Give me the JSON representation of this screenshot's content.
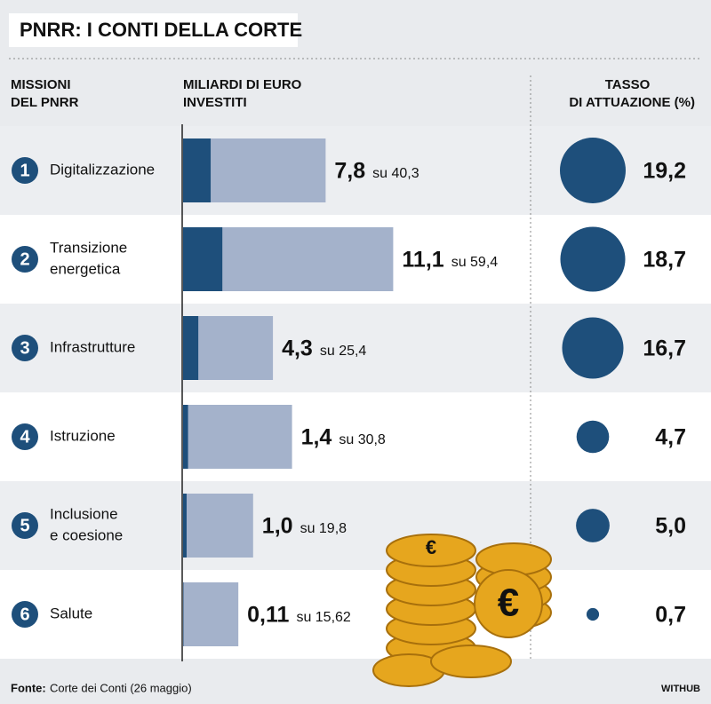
{
  "chart_data": {
    "type": "bar",
    "title": "PNRR: I CONTI DELLA CORTE",
    "headers": {
      "missions": [
        "MISSIONI",
        "DEL PNRR"
      ],
      "investments": [
        "MILIARDI DI EURO",
        "INVESTITI"
      ],
      "rate": [
        "TASSO",
        "DI ATTUAZIONE (%)"
      ]
    },
    "numbers": [
      "1",
      "2",
      "3",
      "4",
      "5",
      "6"
    ],
    "categories": [
      [
        "Digitalizzazione"
      ],
      [
        "Transizione",
        "energetica"
      ],
      [
        "Infrastrutture"
      ],
      [
        "Istruzione"
      ],
      [
        "Inclusione",
        "e coesione"
      ],
      [
        "Salute"
      ]
    ],
    "values": [
      7.8,
      11.1,
      4.3,
      1.4,
      1.0,
      0.11
    ],
    "value_labels": [
      "7,8",
      "11,1",
      "4,3",
      "1,4",
      "1,0",
      "0,11"
    ],
    "totals": [
      40.3,
      59.4,
      25.4,
      30.8,
      19.8,
      15.62
    ],
    "total_labels": [
      "su 40,3",
      "su 59,4",
      "su 25,4",
      "su 30,8",
      "su 19,8",
      "su 15,62"
    ],
    "rates": [
      19.2,
      18.7,
      16.7,
      4.7,
      5.0,
      0.7
    ],
    "rate_labels": [
      "19,2",
      "18,7",
      "16,7",
      "4,7",
      "5,0",
      "0,7"
    ],
    "colors": {
      "invested": "#1e4f7b",
      "total": "#a4b2cb",
      "rate": "#1e4f7b"
    },
    "source_label": "Fonte:",
    "source": "Corte dei Conti (26 maggio)",
    "credit": "WITHUB"
  }
}
